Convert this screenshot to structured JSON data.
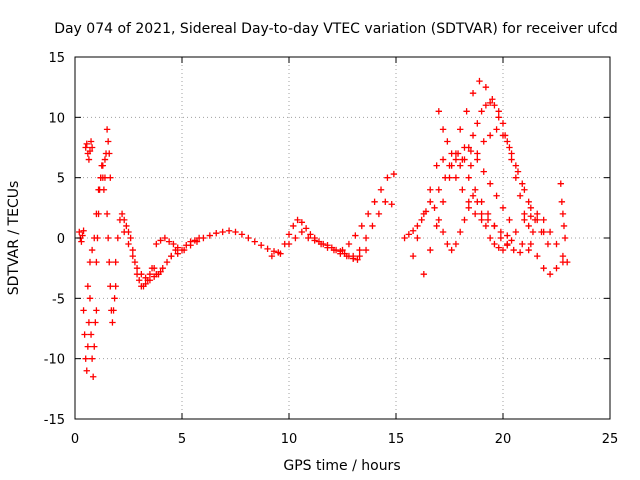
{
  "chart_data": {
    "type": "scatter",
    "title": "Day 074 of 2021, Sidereal Day-to-day VTEC variation (SDTVAR) for receiver ufcd",
    "xlabel": "GPS time / hours",
    "ylabel": "SDTVAR / TECUs",
    "xlim": [
      0,
      25
    ],
    "ylim": [
      -15,
      15
    ],
    "xticks": [
      0,
      5,
      10,
      15,
      20,
      25
    ],
    "yticks": [
      -15,
      -10,
      -5,
      0,
      5,
      10,
      15
    ],
    "xtick_labels": [
      "0",
      "5",
      "10",
      "15",
      "20",
      "25"
    ],
    "ytick_labels": [
      "-15",
      "-10",
      "-5",
      "0",
      "5",
      "10",
      "15"
    ],
    "grid": true,
    "marker": "+",
    "marker_color": "#ff0000",
    "series": [
      {
        "name": "s1",
        "x": [
          0.2,
          0.25,
          0.3,
          0.35,
          0.4
        ],
        "y": [
          0.5,
          0.0,
          -0.3,
          0.2,
          0.6
        ]
      },
      {
        "name": "s2",
        "x": [
          0.4,
          0.45,
          0.5,
          0.55,
          0.6,
          0.65,
          0.7,
          0.75,
          0.8,
          0.85,
          0.9,
          0.95,
          1.0
        ],
        "y": [
          -6,
          -8,
          -10,
          -11,
          -9,
          -7,
          -5,
          -8,
          -10,
          -11.5,
          -9,
          -7,
          -6
        ]
      },
      {
        "name": "s3",
        "x": [
          0.5,
          0.55,
          0.6,
          0.65,
          0.7,
          0.75,
          0.8
        ],
        "y": [
          7.5,
          7.8,
          7.0,
          6.5,
          7.2,
          8.0,
          7.5
        ]
      },
      {
        "name": "s4",
        "x": [
          0.6,
          0.7,
          0.8,
          0.9,
          1.0,
          1.1,
          1.2,
          1.3,
          1.4
        ],
        "y": [
          -4,
          -2,
          -1,
          0,
          2,
          4,
          5,
          6,
          6.5
        ]
      },
      {
        "name": "s5",
        "x": [
          1.0,
          1.05,
          1.1,
          1.15,
          1.2,
          1.25,
          1.3,
          1.35,
          1.4,
          1.45,
          1.5,
          1.55,
          1.6,
          1.65
        ],
        "y": [
          -2,
          0,
          2,
          4,
          5,
          6,
          5,
          4,
          5,
          7,
          9,
          8,
          7,
          5
        ]
      },
      {
        "name": "s6",
        "x": [
          1.5,
          1.55,
          1.6,
          1.65,
          1.7,
          1.75,
          1.8,
          1.85,
          1.9
        ],
        "y": [
          2,
          0,
          -2,
          -4,
          -6,
          -7,
          -6,
          -5,
          -4
        ]
      },
      {
        "name": "s7",
        "x": [
          1.9,
          2.0,
          2.1,
          2.2,
          2.3,
          2.4,
          2.5,
          2.6,
          2.7,
          2.8,
          2.9,
          3.0,
          3.1,
          3.2,
          3.3,
          3.4,
          3.5,
          3.6,
          3.7,
          3.8,
          3.9,
          4.0
        ],
        "y": [
          -2,
          0,
          1.5,
          2,
          1.5,
          1,
          0.5,
          0,
          -1,
          -2,
          -3,
          -3.5,
          -4,
          -4,
          -3.8,
          -3.5,
          -3,
          -2.5,
          -2.5,
          -3,
          -3,
          -2.8
        ]
      },
      {
        "name": "s8",
        "x": [
          2.3,
          2.5,
          2.7,
          2.9,
          3.1,
          3.3,
          3.5,
          3.7,
          3.9,
          4.1,
          4.3,
          4.5,
          4.7
        ],
        "y": [
          0.5,
          -0.5,
          -1.5,
          -2.5,
          -3,
          -3.3,
          -3.5,
          -3.2,
          -3,
          -2.5,
          -2,
          -1.5,
          -1
        ]
      },
      {
        "name": "s9",
        "x": [
          3.8,
          4.0,
          4.2,
          4.4,
          4.6,
          4.8,
          5.0,
          5.2,
          5.4,
          5.6,
          5.8
        ],
        "y": [
          -0.5,
          -0.2,
          0,
          -0.3,
          -0.5,
          -0.8,
          -1.0,
          -0.6,
          -0.3,
          -0.2,
          0
        ]
      },
      {
        "name": "s10",
        "x": [
          4.5,
          4.8,
          5.1,
          5.4,
          5.7,
          6.0,
          6.3,
          6.6,
          6.9,
          7.2,
          7.5,
          7.8,
          8.1,
          8.4,
          8.7,
          9.0,
          9.3,
          9.6
        ],
        "y": [
          -1.5,
          -1.3,
          -1.0,
          -0.6,
          -0.3,
          0,
          0.2,
          0.4,
          0.5,
          0.6,
          0.5,
          0.3,
          0,
          -0.3,
          -0.6,
          -0.9,
          -1.1,
          -1.3
        ]
      },
      {
        "name": "s11",
        "x": [
          9.2,
          9.5,
          9.8,
          10.0,
          10.2,
          10.4,
          10.6,
          10.8,
          11.0,
          11.2,
          11.4,
          11.6,
          11.8,
          12.0,
          12.2,
          12.4,
          12.6,
          12.8,
          13.0,
          13.2
        ],
        "y": [
          -1.5,
          -1.2,
          -0.5,
          0.3,
          1,
          1.5,
          1.3,
          0.8,
          0.3,
          0,
          -0.3,
          -0.5,
          -0.6,
          -0.8,
          -1.0,
          -1.1,
          -1.3,
          -1.5,
          -1.7,
          -1.8
        ]
      },
      {
        "name": "s12",
        "x": [
          10.0,
          10.3,
          10.6,
          10.9,
          11.2,
          11.5,
          11.8,
          12.1,
          12.4,
          12.7,
          13.0,
          13.3,
          13.6
        ],
        "y": [
          -0.5,
          0,
          0.5,
          0,
          -0.2,
          -0.5,
          -0.8,
          -1.0,
          -1.3,
          -1.5,
          -1.7,
          -1.5,
          -1.0
        ]
      },
      {
        "name": "s13",
        "x": [
          12.5,
          12.8,
          13.1,
          13.4,
          13.7,
          14.0,
          14.3,
          14.6,
          14.9
        ],
        "y": [
          -1,
          -0.5,
          0.2,
          1,
          2,
          3,
          4,
          5,
          5.3
        ]
      },
      {
        "name": "s14",
        "x": [
          13.0,
          13.3,
          13.6,
          13.9,
          14.2,
          14.5,
          14.8
        ],
        "y": [
          -1.5,
          -1.0,
          0,
          1,
          2,
          3,
          2.8
        ]
      },
      {
        "name": "s15",
        "x": [
          15.4,
          15.6,
          15.8,
          16.0,
          16.2,
          16.4,
          16.6,
          16.8,
          17.0,
          17.2,
          17.4,
          17.6,
          17.8,
          18.0,
          18.2,
          18.4,
          18.6,
          18.8,
          19.0,
          19.2,
          19.4,
          19.6,
          19.8,
          20.0,
          20.2,
          20.4
        ],
        "y": [
          0,
          0.3,
          0.6,
          1,
          1.5,
          2.2,
          3,
          2.5,
          1.5,
          0.5,
          -0.5,
          -1,
          -0.5,
          0.5,
          1.5,
          2.5,
          3.5,
          3.0,
          2.0,
          1.0,
          0.0,
          -0.5,
          -0.8,
          -1.0,
          -0.6,
          -0.2
        ]
      },
      {
        "name": "s16",
        "x": [
          15.8,
          16.0,
          16.3,
          16.6,
          16.9,
          17.2,
          17.5,
          17.8,
          18.1,
          18.4,
          18.7,
          19.0,
          19.3,
          19.6,
          19.9,
          20.2
        ],
        "y": [
          -1.5,
          0,
          2,
          4,
          6,
          6.5,
          6,
          5,
          4,
          3,
          2,
          1.5,
          1.5,
          1.0,
          0.5,
          0.2
        ]
      },
      {
        "name": "s17",
        "x": [
          16.3,
          16.6,
          16.9,
          17.2,
          17.5,
          17.8,
          18.1,
          18.4,
          18.7,
          19.0,
          19.3,
          19.6,
          19.9,
          20.2,
          20.5,
          20.8
        ],
        "y": [
          -3,
          -1,
          1,
          3,
          5,
          7,
          6.5,
          5,
          4,
          3,
          2,
          1,
          0,
          -0.5,
          -1.0,
          -1.2
        ]
      },
      {
        "name": "s18",
        "x": [
          17.0,
          17.3,
          17.6,
          17.9,
          18.2,
          18.5,
          18.8,
          19.1,
          19.4,
          19.7,
          20.0,
          20.3,
          20.6,
          20.9,
          21.2
        ],
        "y": [
          4,
          5,
          6,
          7,
          7.5,
          7.2,
          6.5,
          5.5,
          4.5,
          3.5,
          2.5,
          1.5,
          0.5,
          -0.5,
          -1.0
        ]
      },
      {
        "name": "s19",
        "x": [
          17.0,
          17.2,
          17.4,
          17.6,
          17.8,
          18.0,
          18.2,
          18.4,
          18.6,
          18.8,
          19.0,
          19.2,
          19.4,
          19.6,
          19.8,
          20.0,
          20.2,
          20.4,
          20.6,
          20.8,
          21.0,
          21.2,
          21.4
        ],
        "y": [
          10.5,
          9,
          8,
          7,
          6.5,
          6,
          6.5,
          7.5,
          8.5,
          9.5,
          10.5,
          11,
          11.2,
          11,
          10.5,
          9.5,
          8,
          6.5,
          5,
          3.5,
          2,
          1,
          0.5
        ]
      },
      {
        "name": "s20",
        "x": [
          18.0,
          18.3,
          18.6,
          18.9,
          19.2,
          19.5,
          19.8,
          20.1,
          20.4,
          20.7,
          21.0,
          21.3,
          21.6,
          21.9
        ],
        "y": [
          9,
          10.5,
          12,
          13,
          12.5,
          11.5,
          10,
          8.5,
          7,
          5.5,
          4,
          2.5,
          1.5,
          0.5
        ]
      },
      {
        "name": "s21",
        "x": [
          18.5,
          18.8,
          19.1,
          19.4,
          19.7,
          20.0,
          20.3,
          20.6,
          20.9,
          21.2,
          21.5,
          21.8,
          22.1
        ],
        "y": [
          6,
          7,
          8,
          8.5,
          9,
          8.5,
          7.5,
          6,
          4.5,
          3,
          1.5,
          0.5,
          -0.5
        ]
      },
      {
        "name": "s22",
        "x": [
          21.0,
          21.3,
          21.6,
          21.9,
          22.2,
          22.5,
          22.8,
          23.0
        ],
        "y": [
          1.5,
          1.8,
          2.0,
          1.5,
          0.5,
          -0.5,
          -1.5,
          -2.0
        ]
      },
      {
        "name": "s23",
        "x": [
          21.3,
          21.6,
          21.9,
          22.2,
          22.5,
          22.8
        ],
        "y": [
          -0.5,
          -1.5,
          -2.5,
          -3,
          -2.5,
          -2
        ]
      },
      {
        "name": "s24",
        "x": [
          22.7,
          22.75,
          22.8,
          22.85,
          22.9
        ],
        "y": [
          4.5,
          3,
          2,
          1,
          0
        ]
      }
    ]
  }
}
